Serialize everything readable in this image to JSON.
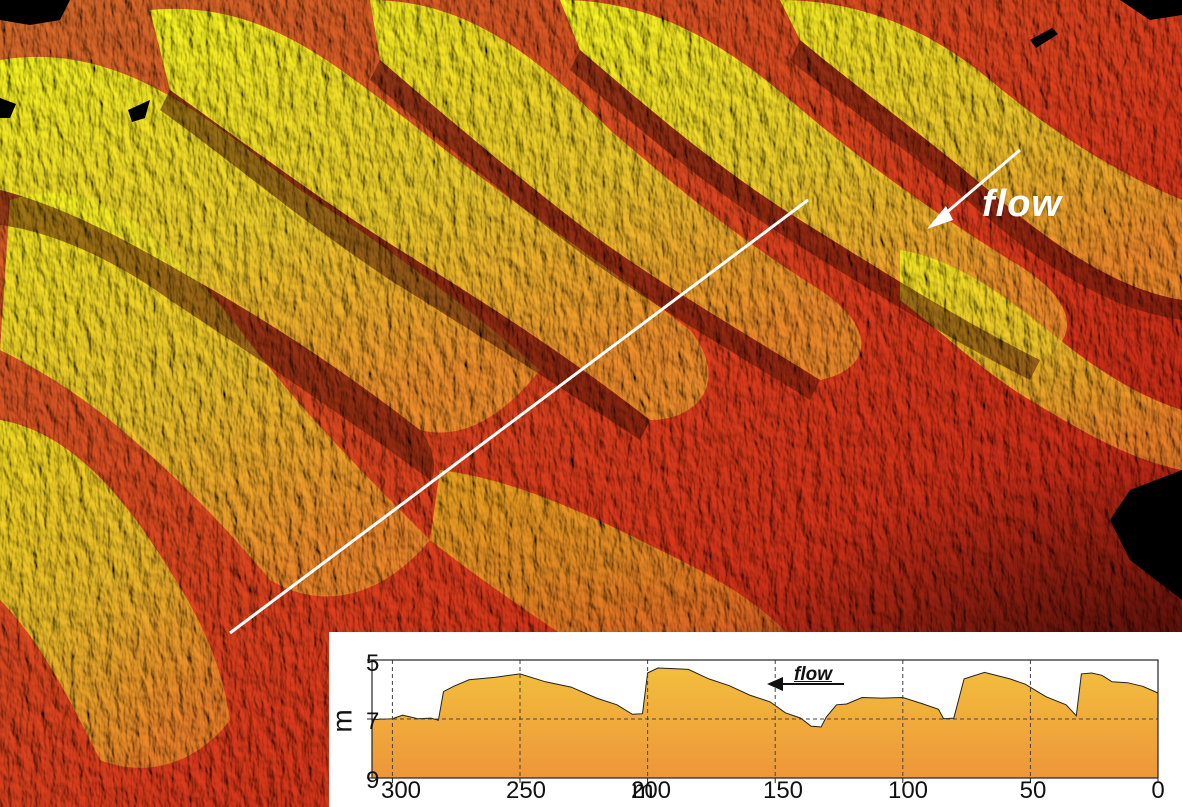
{
  "scene": {
    "description_icons": [
      "dune-field-relief",
      "transect-line",
      "flow-arrow-icon"
    ],
    "flow_label": "flow"
  },
  "inset": {
    "flow_label": "flow",
    "colors": {
      "profile_fill_top": "#f2bd3a",
      "profile_fill_bottom": "#ee9a3a",
      "grid": "#444444"
    }
  },
  "chart_data": {
    "type": "area",
    "xlabel": "m",
    "ylabel": "m",
    "xlim": [
      300,
      0
    ],
    "ylim": [
      9,
      5
    ],
    "x_ticks": [
      "300",
      "250",
      "200",
      "150",
      "100",
      "50",
      "0"
    ],
    "y_ticks": [
      "5",
      "7",
      "9"
    ],
    "grid": true,
    "x": [
      308,
      300,
      296,
      290,
      285,
      282,
      280,
      276,
      270,
      260,
      250,
      240,
      230,
      220,
      212,
      206,
      202,
      200,
      196,
      190,
      184,
      176,
      168,
      160,
      152,
      146,
      140,
      136,
      132,
      130,
      126,
      122,
      116,
      108,
      100,
      92,
      86,
      84,
      80,
      76,
      68,
      58,
      52,
      44,
      36,
      32,
      30,
      26,
      22,
      18,
      12,
      6,
      0
    ],
    "values": [
      7.05,
      6.95,
      6.9,
      6.95,
      7.0,
      7.0,
      6.1,
      5.85,
      5.7,
      5.55,
      5.5,
      5.7,
      5.95,
      6.25,
      6.55,
      6.8,
      6.85,
      5.4,
      5.3,
      5.25,
      5.35,
      5.6,
      5.9,
      6.15,
      6.45,
      6.75,
      7.0,
      7.2,
      7.3,
      6.9,
      6.55,
      6.45,
      6.3,
      6.25,
      6.3,
      6.45,
      6.7,
      6.95,
      7.0,
      5.6,
      5.45,
      5.6,
      5.85,
      6.2,
      6.55,
      6.85,
      5.5,
      5.4,
      5.55,
      5.7,
      5.8,
      5.85,
      6.15
    ]
  }
}
